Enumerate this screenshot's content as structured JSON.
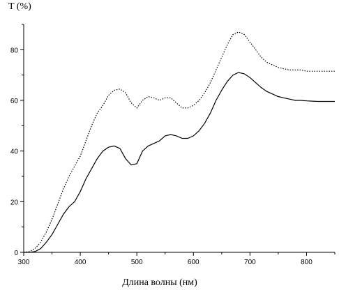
{
  "chart_data": {
    "type": "line",
    "ylabel": "T (%)",
    "xlabel": "Длина волны  (нм)",
    "xlim": [
      300,
      850
    ],
    "ylim": [
      0,
      90
    ],
    "xticks": [
      300,
      400,
      500,
      600,
      700,
      800
    ],
    "yticks": [
      0,
      20,
      40,
      60,
      80
    ],
    "grid": false,
    "series": [
      {
        "style": "dotted",
        "x": [
          300,
          310,
          320,
          330,
          340,
          350,
          360,
          370,
          380,
          390,
          400,
          410,
          420,
          430,
          440,
          450,
          460,
          470,
          480,
          490,
          500,
          510,
          520,
          530,
          540,
          550,
          560,
          570,
          580,
          590,
          600,
          610,
          620,
          630,
          640,
          650,
          660,
          670,
          680,
          690,
          700,
          710,
          720,
          730,
          740,
          750,
          760,
          770,
          780,
          790,
          800,
          810,
          820,
          830,
          840,
          850
        ],
        "y": [
          0,
          0.3,
          1.5,
          4,
          8,
          13,
          19,
          25,
          30,
          34,
          38,
          44,
          50,
          55,
          58,
          62,
          64,
          64.5,
          63,
          59,
          57,
          60,
          61.5,
          61,
          60,
          61,
          61,
          59,
          57,
          57,
          58,
          60,
          63,
          67,
          72,
          77,
          82,
          86,
          87,
          86,
          83,
          80,
          77,
          75,
          74,
          73,
          72.5,
          72,
          72,
          72,
          71.5,
          71.5,
          71.5,
          71.5,
          71.5,
          71.5
        ]
      },
      {
        "style": "solid",
        "x": [
          300,
          310,
          320,
          330,
          340,
          350,
          360,
          370,
          380,
          390,
          400,
          410,
          420,
          430,
          440,
          450,
          460,
          470,
          480,
          490,
          500,
          510,
          520,
          530,
          540,
          550,
          560,
          570,
          580,
          590,
          600,
          610,
          620,
          630,
          640,
          650,
          660,
          670,
          680,
          690,
          700,
          710,
          720,
          730,
          740,
          750,
          760,
          770,
          780,
          790,
          800,
          810,
          820,
          830,
          840,
          850
        ],
        "y": [
          0,
          0,
          0.3,
          1.5,
          4,
          7,
          11,
          15,
          18,
          20,
          24,
          29,
          33,
          37,
          40,
          41.5,
          42,
          41,
          37,
          34.5,
          35,
          40,
          42,
          43,
          44,
          46,
          46.5,
          46,
          45,
          45,
          46,
          48,
          51,
          55,
          60,
          64,
          67.5,
          70,
          71,
          70.5,
          69,
          67,
          65,
          63.5,
          62.5,
          61.5,
          61,
          60.5,
          60,
          60,
          59.8,
          59.7,
          59.6,
          59.6,
          59.6,
          59.6
        ]
      }
    ]
  }
}
